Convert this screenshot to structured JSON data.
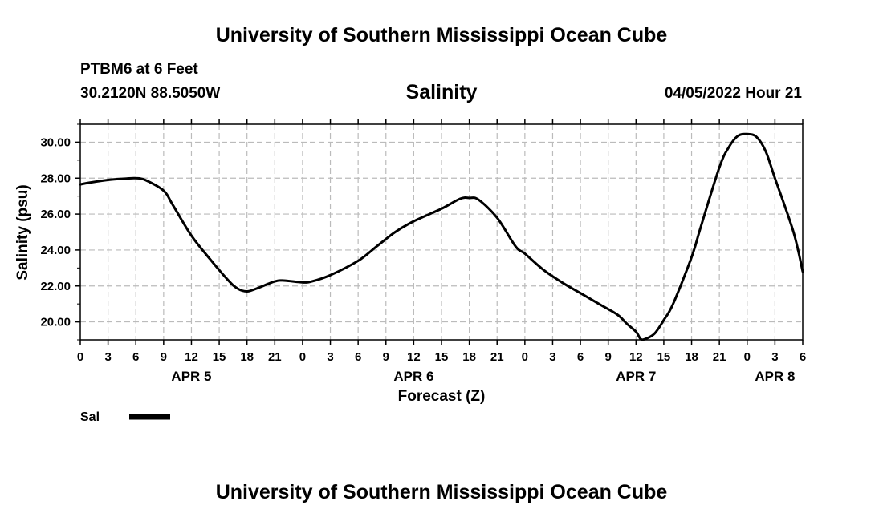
{
  "header": {
    "title_top": "University of Southern Mississippi Ocean Cube",
    "station": "PTBM6 at 6 Feet",
    "coords": "30.2120N  88.5050W",
    "variable": "Salinity",
    "timestamp": "04/05/2022 Hour 21"
  },
  "footer": {
    "title_bottom": "University of Southern Mississippi Ocean Cube"
  },
  "chart_data": {
    "type": "line",
    "title": "Salinity",
    "xlabel": "Forecast (Z)",
    "ylabel": "Salinity (psu)",
    "ylim": [
      19.0,
      31.0
    ],
    "xlim": [
      0,
      78
    ],
    "y_ticks": [
      20,
      22,
      24,
      26,
      28,
      30
    ],
    "y_tick_labels": [
      "20.00",
      "22.00",
      "24.00",
      "26.00",
      "28.00",
      "30.00"
    ],
    "x_ticks": [
      0,
      3,
      6,
      9,
      12,
      15,
      18,
      21,
      24,
      27,
      30,
      33,
      36,
      39,
      42,
      45,
      48,
      51,
      54,
      57,
      60,
      63,
      66,
      69,
      72,
      75,
      78
    ],
    "x_tick_labels": [
      "0",
      "3",
      "6",
      "9",
      "12",
      "15",
      "18",
      "21",
      "0",
      "3",
      "6",
      "9",
      "12",
      "15",
      "18",
      "21",
      "0",
      "3",
      "6",
      "9",
      "12",
      "15",
      "18",
      "21",
      "0",
      "3",
      "6"
    ],
    "day_labels": [
      {
        "label": "APR 5",
        "x": 12
      },
      {
        "label": "APR 6",
        "x": 36
      },
      {
        "label": "APR 7",
        "x": 60
      },
      {
        "label": "APR 8",
        "x": 75
      }
    ],
    "grid": true,
    "series": [
      {
        "name": "Sal",
        "color": "#000000",
        "x": [
          0,
          1,
          3,
          5,
          6,
          7,
          9,
          10,
          12,
          14,
          16,
          17,
          18,
          19,
          21,
          22,
          24,
          25,
          27,
          30,
          32,
          34,
          36,
          39,
          41,
          42,
          43,
          45,
          47,
          48,
          50,
          52,
          54,
          56,
          58,
          59,
          60,
          60.5,
          61,
          62,
          63,
          64,
          66,
          67,
          69,
          70,
          71,
          72,
          73,
          74,
          75,
          77,
          78
        ],
        "values": [
          27.65,
          27.75,
          27.9,
          27.98,
          28.0,
          27.9,
          27.3,
          26.5,
          24.8,
          23.5,
          22.3,
          21.85,
          21.7,
          21.85,
          22.25,
          22.3,
          22.2,
          22.25,
          22.6,
          23.4,
          24.2,
          25.0,
          25.6,
          26.3,
          26.85,
          26.9,
          26.8,
          25.8,
          24.2,
          23.8,
          22.9,
          22.2,
          21.6,
          21.0,
          20.4,
          19.9,
          19.45,
          19.05,
          19.05,
          19.35,
          20.1,
          21.0,
          23.6,
          25.3,
          28.6,
          29.7,
          30.35,
          30.45,
          30.3,
          29.5,
          28.0,
          25.0,
          22.8
        ]
      }
    ],
    "legend": {
      "label": "Sal",
      "position": "bottom-left"
    }
  }
}
